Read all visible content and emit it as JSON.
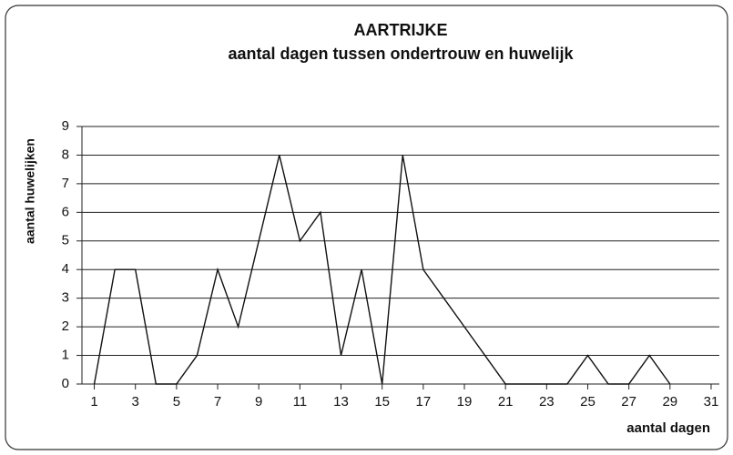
{
  "chart_data": {
    "type": "line",
    "title": "AARTRIJKE",
    "subtitle": "aantal dagen tussen ondertrouw en huwelijk",
    "x_label": "aantal dagen",
    "y_label": "aantal huwelijken",
    "x": [
      1,
      2,
      3,
      4,
      5,
      6,
      7,
      8,
      9,
      10,
      11,
      12,
      13,
      14,
      15,
      16,
      17,
      18,
      19,
      20,
      21,
      22,
      23,
      24,
      25,
      26,
      27,
      28,
      29
    ],
    "series": [
      {
        "name": "aantal huwelijken",
        "color": "#111111",
        "values": [
          0,
          4,
          4,
          0,
          0,
          1,
          4,
          2,
          5,
          8,
          5,
          6,
          1,
          4,
          0,
          8,
          4,
          3,
          2,
          1,
          0,
          0,
          0,
          0,
          1,
          0,
          0,
          1,
          0
        ]
      }
    ],
    "xlim": [
      0.4,
      31.4
    ],
    "xticks": [
      1,
      3,
      5,
      7,
      9,
      11,
      13,
      15,
      17,
      19,
      21,
      23,
      25,
      27,
      29,
      31
    ],
    "ylim": [
      0,
      9
    ],
    "yticks": [
      0,
      1,
      2,
      3,
      4,
      5,
      6,
      7,
      8,
      9
    ],
    "grid": true
  }
}
